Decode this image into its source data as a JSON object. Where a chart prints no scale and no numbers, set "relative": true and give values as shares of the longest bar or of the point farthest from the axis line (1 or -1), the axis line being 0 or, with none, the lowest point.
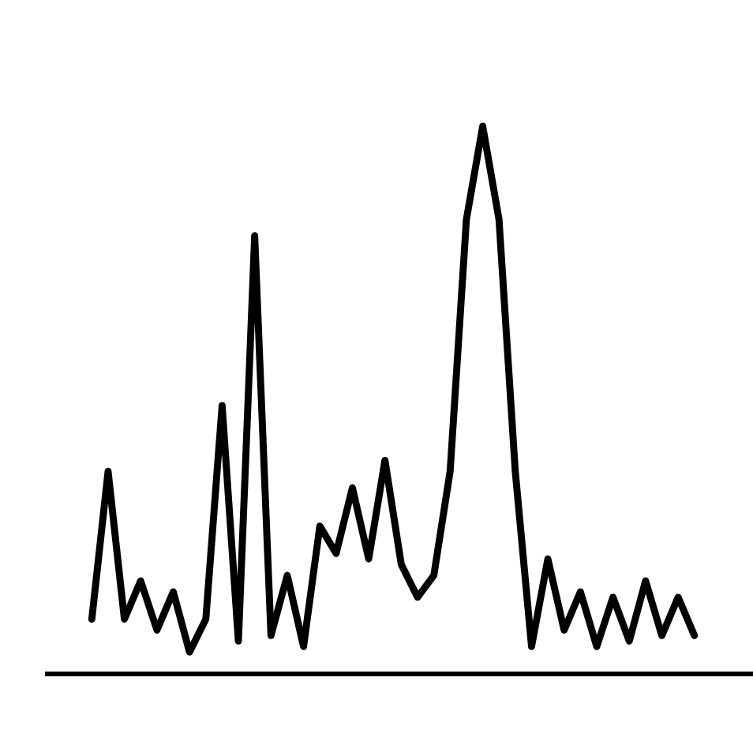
{
  "chart_data": {
    "type": "line",
    "relative": true,
    "marker": "none",
    "line_style": "solid",
    "categories": [
      null,
      null,
      null,
      null,
      null,
      null,
      null,
      null,
      null,
      null,
      null,
      null,
      null,
      null,
      null,
      null,
      null,
      null,
      null,
      null,
      null,
      null,
      null,
      null,
      null,
      null,
      null,
      null,
      null,
      null,
      null,
      null,
      null,
      null,
      null,
      null,
      null,
      null
    ],
    "series": [
      {
        "color": "#000000",
        "values": [
          0.1,
          0.37,
          0.1,
          0.17,
          0.08,
          0.15,
          0.04,
          0.1,
          0.49,
          0.06,
          0.8,
          0.07,
          0.18,
          0.05,
          0.27,
          0.22,
          0.34,
          0.21,
          0.39,
          0.2,
          0.14,
          0.18,
          0.37,
          0.83,
          1,
          0.83,
          0.37,
          0.05,
          0.21,
          0.08,
          0.15,
          0.05,
          0.14,
          0.06,
          0.17,
          0.07,
          0.14,
          0.07
        ]
      }
    ]
  }
}
